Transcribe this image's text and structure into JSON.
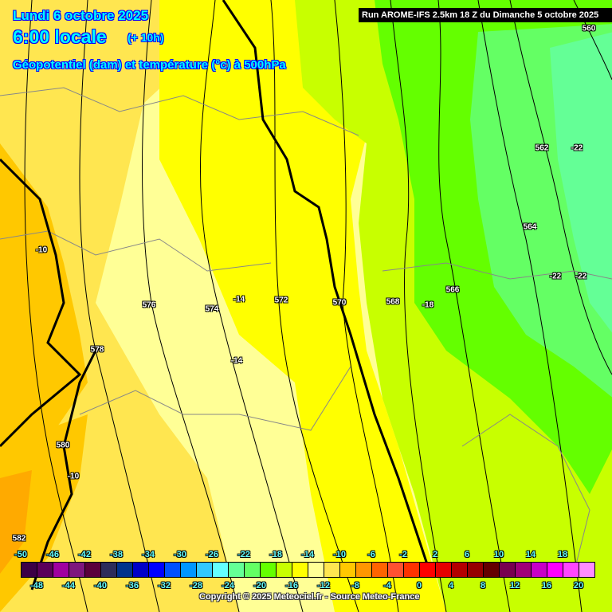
{
  "header": {
    "date": "Lundi 6 octobre 2025",
    "time": "6:00 locale",
    "lead": "(+ 10h)",
    "parameter": "Géopotentiel (dam) et température (°c) à 500hPa",
    "run": "Run AROME-IFS 2.5km 18 Z du Dimanche 5 octobre 2025"
  },
  "contour_labels": [
    {
      "text": "560",
      "kind": "geopotential"
    },
    {
      "text": "562",
      "kind": "geopotential"
    },
    {
      "text": "-22",
      "kind": "temperature"
    },
    {
      "text": "564",
      "kind": "geopotential"
    },
    {
      "text": "-22",
      "kind": "temperature"
    },
    {
      "text": "-22",
      "kind": "temperature"
    },
    {
      "text": "566",
      "kind": "geopotential"
    },
    {
      "text": "568",
      "kind": "geopotential"
    },
    {
      "text": "-18",
      "kind": "temperature"
    },
    {
      "text": "570",
      "kind": "geopotential"
    },
    {
      "text": "572",
      "kind": "geopotential"
    },
    {
      "text": "574",
      "kind": "geopotential"
    },
    {
      "text": "-14",
      "kind": "temperature"
    },
    {
      "text": "-14",
      "kind": "temperature"
    },
    {
      "text": "576",
      "kind": "geopotential"
    },
    {
      "text": "578",
      "kind": "geopotential"
    },
    {
      "text": "-10",
      "kind": "temperature"
    },
    {
      "text": "580",
      "kind": "geopotential"
    },
    {
      "text": "-10",
      "kind": "temperature"
    },
    {
      "text": "582",
      "kind": "geopotential"
    }
  ],
  "legend": {
    "unit": "°c",
    "top_labels": [
      "-50",
      "-46",
      "-42",
      "-38",
      "-34",
      "-30",
      "-26",
      "-22",
      "-18",
      "-14",
      "-10",
      "-6",
      "-2",
      "2",
      "6",
      "10",
      "14",
      "18"
    ],
    "bottom_labels": [
      "-48",
      "-44",
      "-40",
      "-36",
      "-32",
      "-28",
      "-24",
      "-20",
      "-16",
      "-12",
      "-8",
      "-4",
      "0",
      "4",
      "8",
      "12",
      "16",
      "20"
    ],
    "colors": [
      "#3c0046",
      "#5a005a",
      "#a000a0",
      "#7e167e",
      "#5a003c",
      "#2d2d5a",
      "#00328c",
      "#0000c8",
      "#0000ff",
      "#0050ff",
      "#0096ff",
      "#32c8ff",
      "#64ffff",
      "#64ff96",
      "#64ff64",
      "#64ff00",
      "#c8ff00",
      "#ffff00",
      "#ffff96",
      "#ffe650",
      "#ffc800",
      "#ff9600",
      "#ff6400",
      "#ff5032",
      "#ff3200",
      "#ff0000",
      "#e60000",
      "#b40000",
      "#960000",
      "#640000",
      "#780050",
      "#a00078",
      "#c800c8",
      "#ff00ff",
      "#ff46ff",
      "#ff8cff"
    ]
  },
  "copyright": "Copyright © 2025 Meteociel.fr - Source Meteo-France"
}
